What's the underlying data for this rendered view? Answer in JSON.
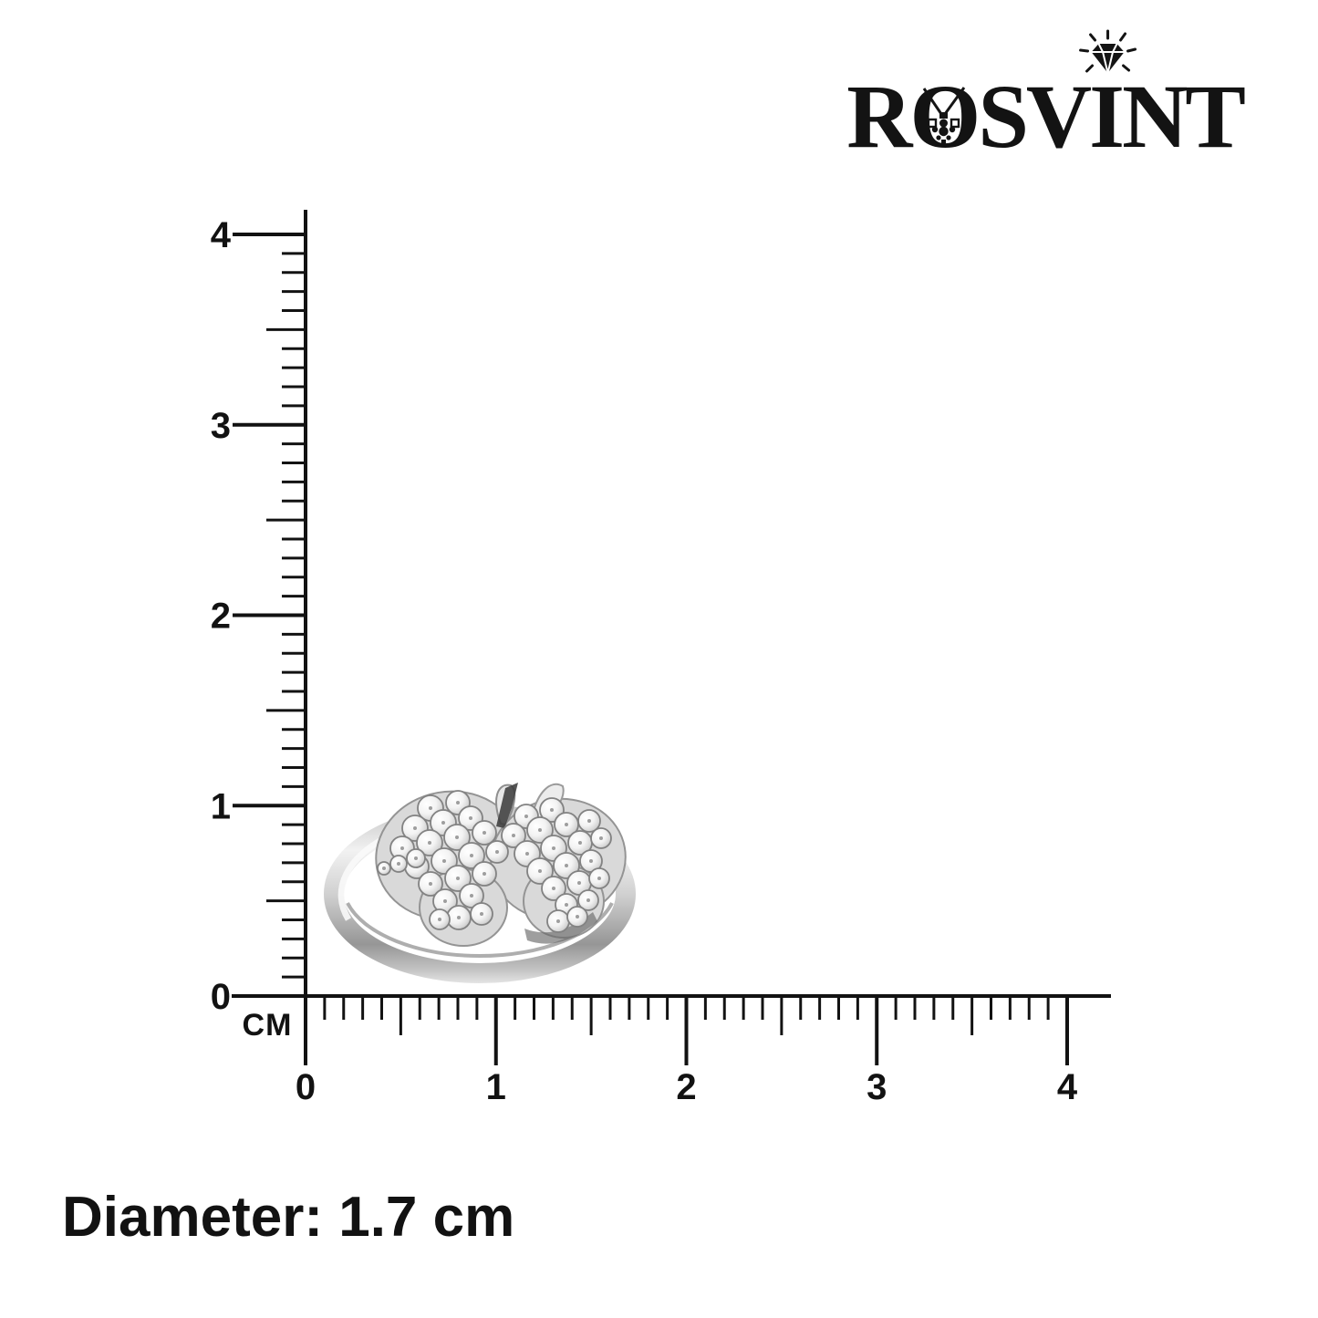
{
  "brand": {
    "name": "ROSVINT",
    "segments": {
      "s1": "R",
      "s2": "O",
      "s3": "SV",
      "s4": "I",
      "s5": "NT"
    },
    "color": "#131313",
    "icons": [
      "necklace-pendant-icon",
      "diamond-sparkle-icon"
    ]
  },
  "ruler": {
    "unit_label": "CM",
    "x_axis": {
      "tick_labels": [
        "0",
        "1",
        "2",
        "3",
        "4"
      ]
    },
    "y_axis": {
      "tick_labels": [
        "0",
        "1",
        "2",
        "3",
        "4"
      ]
    },
    "subdivisions_per_cm": 10,
    "color": "#121212"
  },
  "product": {
    "photo_icon": "silver-crystal-butterfly-ring-photo",
    "caption": "Diameter: 1.7 cm"
  }
}
